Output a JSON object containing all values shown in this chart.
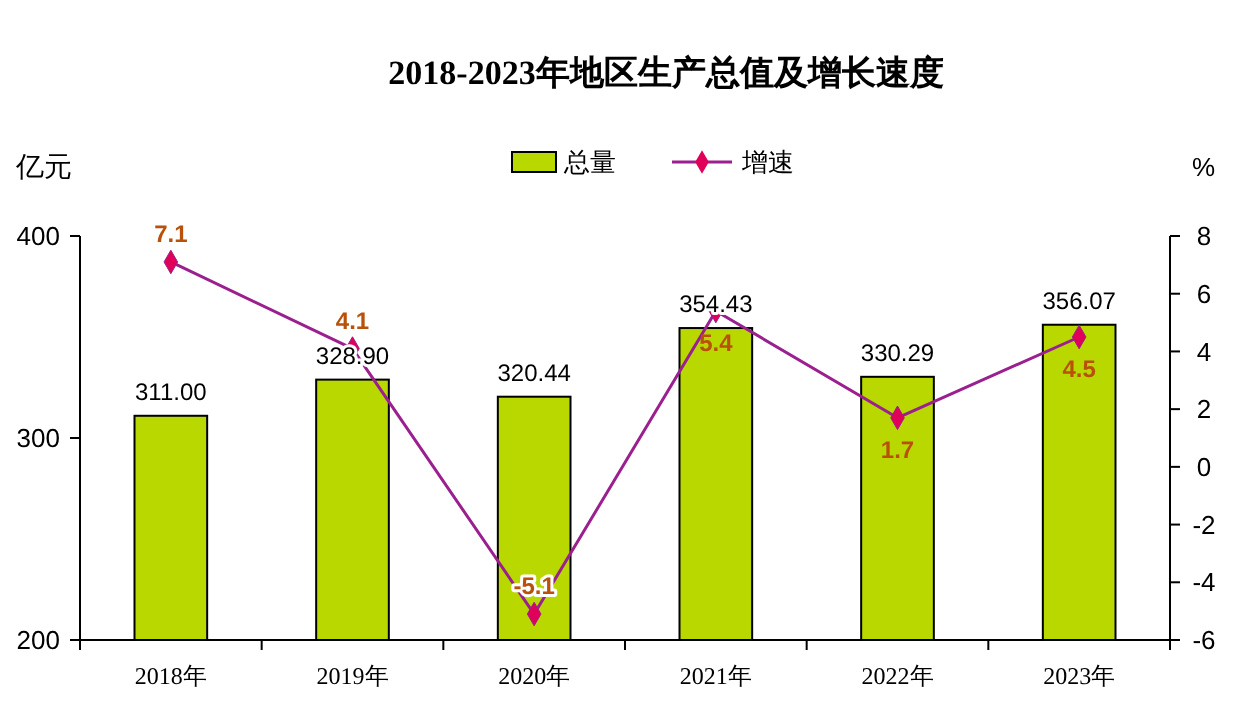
{
  "chart_data": {
    "type": "bar",
    "title": "2018-2023年地区生产总值及增长速度",
    "ylabel": "亿元",
    "y2label": "%",
    "categories": [
      "2018年",
      "2019年",
      "2020年",
      "2021年",
      "2022年",
      "2023年"
    ],
    "series": [
      {
        "name": "总量",
        "color": "#b8d800",
        "values": [
          311.0,
          328.9,
          320.44,
          354.43,
          330.29,
          356.07
        ],
        "value_labels": [
          "311.00",
          "328.90",
          "320.44",
          "354.43",
          "330.29",
          "356.07"
        ]
      },
      {
        "name": "增速",
        "type": "line",
        "axis": "y2",
        "color": "#9b1f8f",
        "marker": "diamond",
        "values": [
          7.1,
          4.1,
          -5.1,
          5.4,
          1.7,
          4.5
        ],
        "value_labels": [
          "7.1",
          "4.1",
          "-5.1",
          "5.4",
          "1.7",
          "4.5"
        ]
      }
    ],
    "ylim": [
      200,
      400
    ],
    "yticks": [
      200,
      300,
      400
    ],
    "y2lim": [
      -6,
      8
    ],
    "y2ticks": [
      -6,
      -4,
      -2,
      0,
      2,
      4,
      6,
      8
    ],
    "legend": "top",
    "grid": false
  }
}
